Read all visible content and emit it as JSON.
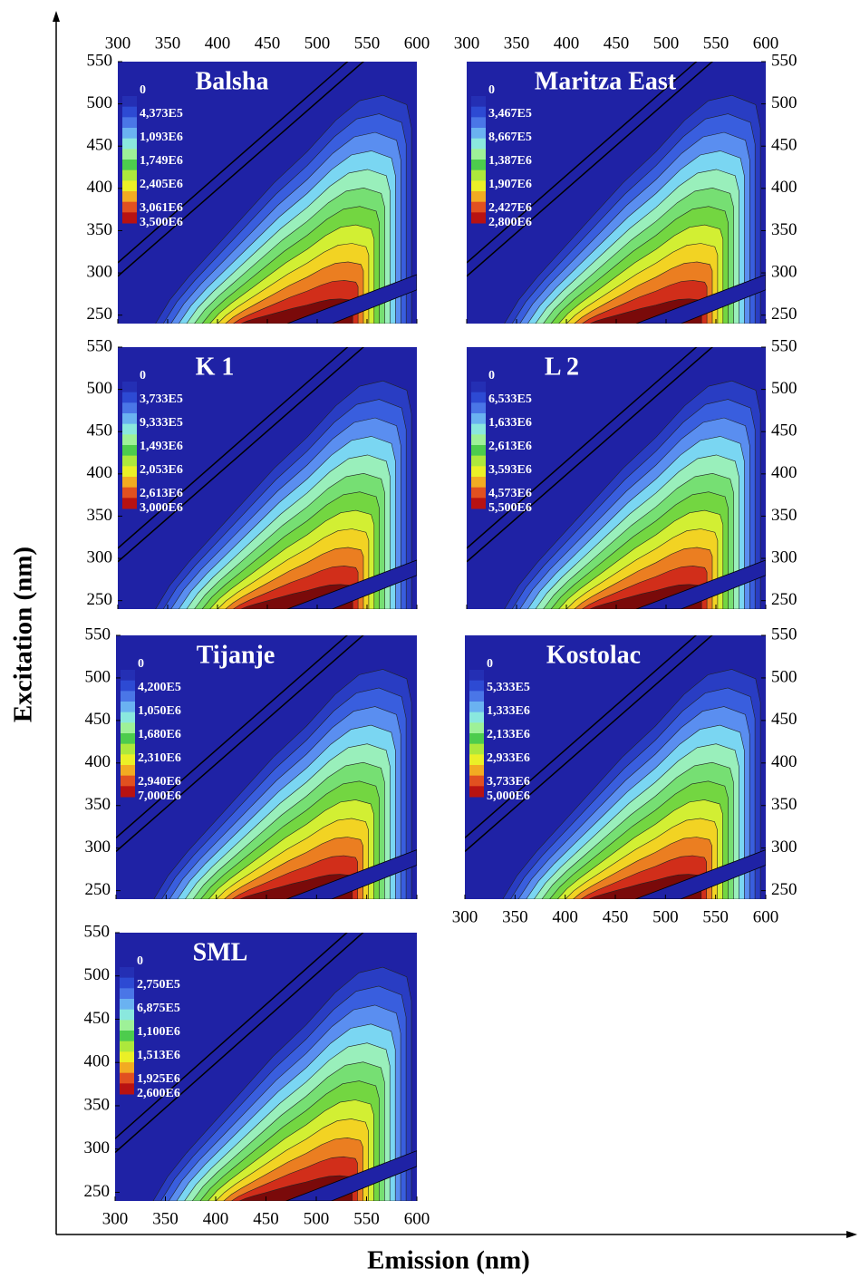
{
  "ylabel": "Excitation (nm)",
  "xlabel": "Emission (nm)",
  "chart_data": [
    {
      "type": "contour",
      "title": "Balsha",
      "xlim": [
        300,
        600
      ],
      "ylim": [
        240,
        550
      ],
      "xticks": [
        300,
        350,
        400,
        450,
        500,
        550,
        600
      ],
      "yticks": [
        250,
        300,
        350,
        400,
        450,
        500,
        550
      ],
      "levels": [
        0,
        {
          "value": 437300,
          "label": "4,373E5"
        },
        {
          "value": 1093000,
          "label": "1,093E6"
        },
        {
          "value": 1749000,
          "label": "1,749E6"
        },
        {
          "value": 2405000,
          "label": "2,405E6"
        },
        {
          "value": 3061000,
          "label": "3,061E6"
        },
        {
          "value": 3500000,
          "label": "3,500E6"
        }
      ]
    },
    {
      "type": "contour",
      "title": "Maritza East",
      "xlim": [
        300,
        600
      ],
      "ylim": [
        240,
        550
      ],
      "xticks": [
        300,
        350,
        400,
        450,
        500,
        550,
        600
      ],
      "yticks": [
        250,
        300,
        350,
        400,
        450,
        500,
        550
      ],
      "levels": [
        0,
        {
          "value": 346700,
          "label": "3,467E5"
        },
        {
          "value": 866700,
          "label": "8,667E5"
        },
        {
          "value": 1387000,
          "label": "1,387E6"
        },
        {
          "value": 1907000,
          "label": "1,907E6"
        },
        {
          "value": 2427000,
          "label": "2,427E6"
        },
        {
          "value": 2800000,
          "label": "2,800E6"
        }
      ]
    },
    {
      "type": "contour",
      "title": "K 1",
      "xlim": [
        300,
        600
      ],
      "ylim": [
        240,
        550
      ],
      "xticks": [
        300,
        350,
        400,
        450,
        500,
        550,
        600
      ],
      "yticks": [
        250,
        300,
        350,
        400,
        450,
        500,
        550
      ],
      "levels": [
        0,
        {
          "value": 373300,
          "label": "3,733E5"
        },
        {
          "value": 933300,
          "label": "9,333E5"
        },
        {
          "value": 1493000,
          "label": "1,493E6"
        },
        {
          "value": 2053000,
          "label": "2,053E6"
        },
        {
          "value": 2613000,
          "label": "2,613E6"
        },
        {
          "value": 3000000,
          "label": "3,000E6"
        }
      ]
    },
    {
      "type": "contour",
      "title": "L 2",
      "xlim": [
        300,
        600
      ],
      "ylim": [
        240,
        550
      ],
      "xticks": [
        300,
        350,
        400,
        450,
        500,
        550,
        600
      ],
      "yticks": [
        250,
        300,
        350,
        400,
        450,
        500,
        550
      ],
      "levels": [
        0,
        {
          "value": 653300,
          "label": "6,533E5"
        },
        {
          "value": 1633000,
          "label": "1,633E6"
        },
        {
          "value": 2613000,
          "label": "2,613E6"
        },
        {
          "value": 3593000,
          "label": "3,593E6"
        },
        {
          "value": 4573000,
          "label": "4,573E6"
        },
        {
          "value": 5500000,
          "label": "5,500E6"
        }
      ]
    },
    {
      "type": "contour",
      "title": "Tijanje",
      "xlim": [
        300,
        600
      ],
      "ylim": [
        240,
        550
      ],
      "xticks": [
        300,
        350,
        400,
        450,
        500,
        550,
        600
      ],
      "yticks": [
        250,
        300,
        350,
        400,
        450,
        500,
        550
      ],
      "levels": [
        0,
        {
          "value": 420000,
          "label": "4,200E5"
        },
        {
          "value": 1050000,
          "label": "1,050E6"
        },
        {
          "value": 1680000,
          "label": "1,680E6"
        },
        {
          "value": 2310000,
          "label": "2,310E6"
        },
        {
          "value": 2940000,
          "label": "2,940E6"
        },
        {
          "value": 7000000,
          "label": "7,000E6"
        }
      ]
    },
    {
      "type": "contour",
      "title": "Kostolac",
      "xlim": [
        300,
        600
      ],
      "ylim": [
        240,
        550
      ],
      "xticks": [
        300,
        350,
        400,
        450,
        500,
        550,
        600
      ],
      "yticks": [
        250,
        300,
        350,
        400,
        450,
        500,
        550
      ],
      "levels": [
        0,
        {
          "value": 533300,
          "label": "5,333E5"
        },
        {
          "value": 1333000,
          "label": "1,333E6"
        },
        {
          "value": 2133000,
          "label": "2,133E6"
        },
        {
          "value": 2933000,
          "label": "2,933E6"
        },
        {
          "value": 3733000,
          "label": "3,733E6"
        },
        {
          "value": 5000000,
          "label": "5,000E6"
        }
      ]
    },
    {
      "type": "contour",
      "title": "SML",
      "xlim": [
        300,
        600
      ],
      "ylim": [
        240,
        550
      ],
      "xticks": [
        300,
        350,
        400,
        450,
        500,
        550,
        600
      ],
      "yticks": [
        250,
        300,
        350,
        400,
        450,
        500,
        550
      ],
      "levels": [
        0,
        {
          "value": 275000,
          "label": "2,750E5"
        },
        {
          "value": 687500,
          "label": "6,875E5"
        },
        {
          "value": 1100000,
          "label": "1,100E6"
        },
        {
          "value": 1513000,
          "label": "1,513E6"
        },
        {
          "value": 1925000,
          "label": "1,925E6"
        },
        {
          "value": 2600000,
          "label": "2,600E6"
        }
      ]
    }
  ]
}
